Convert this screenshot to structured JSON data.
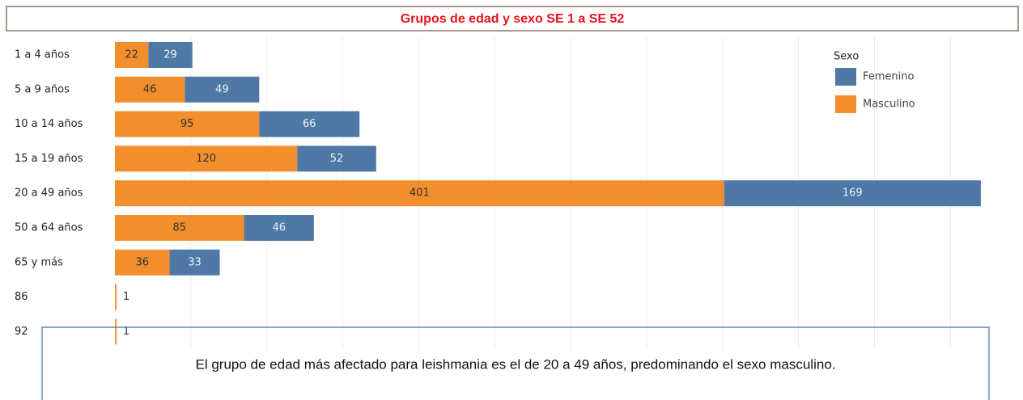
{
  "chart_data": {
    "type": "bar",
    "orientation": "horizontal",
    "stacked": true,
    "title": "Grupos de edad y sexo SE 1 a SE 52",
    "categories": [
      "1 a 4 años",
      "5 a 9 años",
      "10 a 14 años",
      "15 a 19 años",
      "20 a 49 años",
      "50 a 64 años",
      "65 y más",
      "86",
      "92"
    ],
    "series": [
      {
        "name": "Masculino",
        "color": "#f28e2b",
        "values": [
          22,
          46,
          95,
          120,
          401,
          85,
          36,
          1,
          1
        ]
      },
      {
        "name": "Femenino",
        "color": "#4e79a7",
        "values": [
          29,
          49,
          66,
          52,
          169,
          46,
          33,
          null,
          null
        ]
      }
    ],
    "legend_title": "Sexo",
    "xlim": [
      0,
      600
    ],
    "xticks": [
      0,
      50,
      100,
      150,
      200,
      250,
      300,
      350,
      400,
      450,
      500,
      550
    ],
    "grid": true,
    "annotation": "El grupo de edad más afectado para leishmania es el de 20 a 49 años, predominando el sexo masculino."
  }
}
